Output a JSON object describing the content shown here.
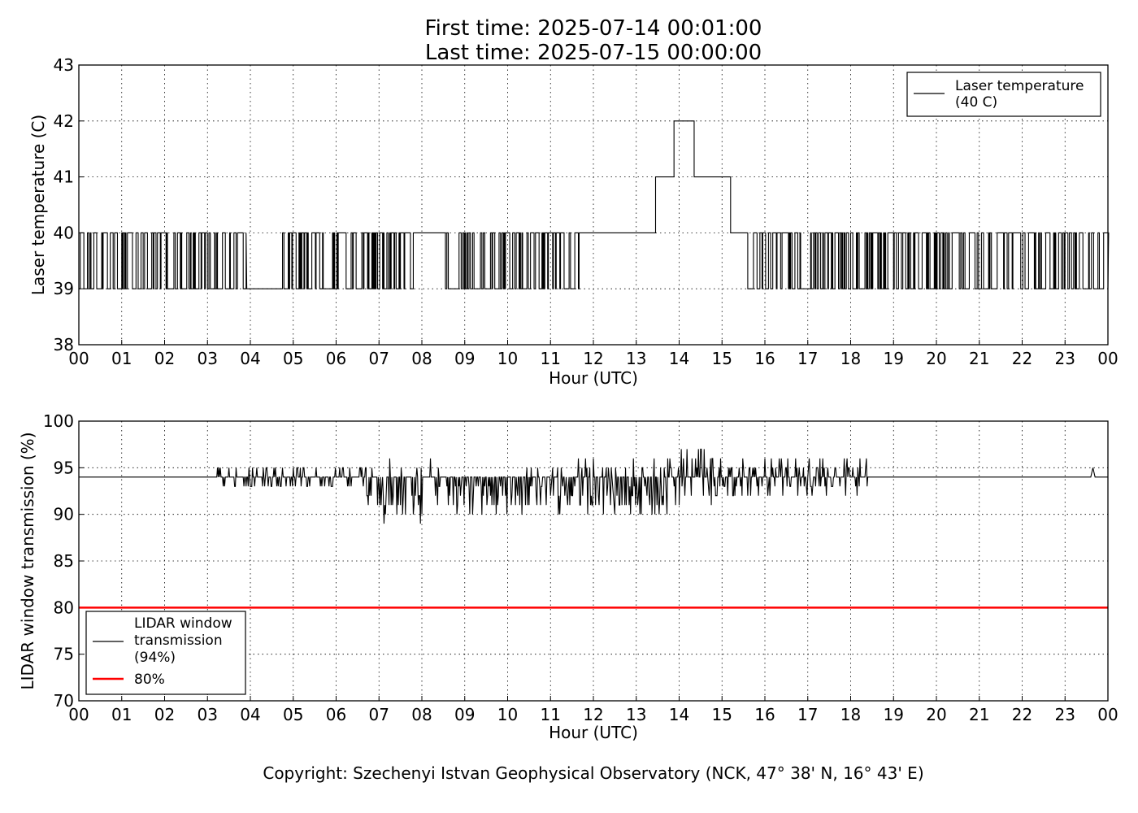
{
  "header": {
    "first_time": "First time: 2025-07-14 00:01:00",
    "last_time": "Last time: 2025-07-15 00:00:00"
  },
  "copyright": "Copyright: Szechenyi Istvan Geophysical Observatory (NCK, 47° 38' N, 16° 43' E)",
  "colors": {
    "series": "#000000",
    "threshold": "#ff0000",
    "grid": "#000000"
  },
  "chart_data": [
    {
      "type": "line",
      "xlabel": "Hour (UTC)",
      "ylabel": "Laser temperature (C)",
      "xlim": [
        0,
        24
      ],
      "ylim": [
        38,
        43
      ],
      "x_ticks": [
        "00",
        "01",
        "02",
        "03",
        "04",
        "05",
        "06",
        "07",
        "08",
        "09",
        "10",
        "11",
        "12",
        "13",
        "14",
        "15",
        "16",
        "17",
        "18",
        "19",
        "20",
        "21",
        "22",
        "23",
        "00"
      ],
      "y_ticks": [
        "38",
        "39",
        "40",
        "41",
        "42",
        "43"
      ],
      "grid": true,
      "legend_position": "top-right",
      "series": [
        {
          "name": "Laser temperature\n(40 C)",
          "legend_lines": [
            "Laser temperature",
            "(40 C)"
          ],
          "color": "#000000",
          "segments": [
            {
              "from": 0.0,
              "to": 0.8,
              "pattern": "toggle",
              "values": [
                39,
                40
              ],
              "base": 39
            },
            {
              "from": 0.8,
              "to": 1.5,
              "pattern": "toggle",
              "values": [
                39,
                40
              ],
              "base": 39
            },
            {
              "from": 1.5,
              "to": 3.9,
              "pattern": "toggle",
              "values": [
                39,
                40
              ],
              "base": 39
            },
            {
              "from": 3.9,
              "to": 4.7,
              "pattern": "constant",
              "values": [
                39
              ]
            },
            {
              "from": 4.7,
              "to": 7.8,
              "pattern": "toggle",
              "values": [
                39,
                40
              ],
              "base": 39
            },
            {
              "from": 7.8,
              "to": 8.55,
              "pattern": "constant",
              "values": [
                40
              ]
            },
            {
              "from": 8.55,
              "to": 11.7,
              "pattern": "toggle",
              "values": [
                39,
                40
              ],
              "base": 39
            },
            {
              "from": 11.7,
              "to": 13.45,
              "pattern": "constant",
              "values": [
                40
              ]
            },
            {
              "from": 13.45,
              "to": 13.88,
              "pattern": "constant",
              "values": [
                41
              ]
            },
            {
              "from": 13.88,
              "to": 14.35,
              "pattern": "constant",
              "values": [
                42
              ]
            },
            {
              "from": 14.35,
              "to": 15.2,
              "pattern": "constant",
              "values": [
                41
              ]
            },
            {
              "from": 15.2,
              "to": 15.6,
              "pattern": "constant",
              "values": [
                40
              ]
            },
            {
              "from": 15.6,
              "to": 24.0,
              "pattern": "toggle",
              "values": [
                39,
                40
              ],
              "base": 39
            }
          ]
        }
      ]
    },
    {
      "type": "line",
      "xlabel": "Hour (UTC)",
      "ylabel": "LIDAR window transmission (%)",
      "xlim": [
        0,
        24
      ],
      "ylim": [
        70,
        100
      ],
      "x_ticks": [
        "00",
        "01",
        "02",
        "03",
        "04",
        "05",
        "06",
        "07",
        "08",
        "09",
        "10",
        "11",
        "12",
        "13",
        "14",
        "15",
        "16",
        "17",
        "18",
        "19",
        "20",
        "21",
        "22",
        "23",
        "00"
      ],
      "y_ticks": [
        "70",
        "75",
        "80",
        "85",
        "90",
        "95",
        "100"
      ],
      "grid": true,
      "legend_position": "bottom-left",
      "series": [
        {
          "name": "LIDAR window\ntransmission\n(94%)",
          "legend_lines": [
            "LIDAR window",
            "transmission",
            "(94%)"
          ],
          "color": "#000000",
          "baseline": 94,
          "segments": [
            {
              "from": 0.0,
              "to": 3.2,
              "pattern": "constant",
              "values": [
                94
              ]
            },
            {
              "from": 3.2,
              "to": 6.7,
              "pattern": "noisy",
              "min": 93,
              "max": 95
            },
            {
              "from": 6.7,
              "to": 8.4,
              "pattern": "noisy",
              "min": 89,
              "max": 96
            },
            {
              "from": 8.4,
              "to": 10.0,
              "pattern": "noisy",
              "min": 90,
              "max": 94
            },
            {
              "from": 10.0,
              "to": 11.5,
              "pattern": "noisy",
              "min": 90,
              "max": 95
            },
            {
              "from": 11.5,
              "to": 14.0,
              "pattern": "noisy",
              "min": 90,
              "max": 96
            },
            {
              "from": 14.0,
              "to": 15.0,
              "pattern": "noisy",
              "min": 91,
              "max": 97
            },
            {
              "from": 15.0,
              "to": 18.45,
              "pattern": "noisy",
              "min": 92,
              "max": 96
            },
            {
              "from": 18.45,
              "to": 23.6,
              "pattern": "constant",
              "values": [
                94
              ]
            },
            {
              "from": 23.6,
              "to": 23.7,
              "pattern": "spike",
              "values": [
                95
              ]
            },
            {
              "from": 23.7,
              "to": 24.0,
              "pattern": "constant",
              "values": [
                94
              ]
            }
          ]
        },
        {
          "name": "80%",
          "legend_lines": [
            "80%"
          ],
          "color": "#ff0000",
          "x": [
            0,
            24
          ],
          "values": [
            80,
            80
          ]
        }
      ]
    }
  ]
}
